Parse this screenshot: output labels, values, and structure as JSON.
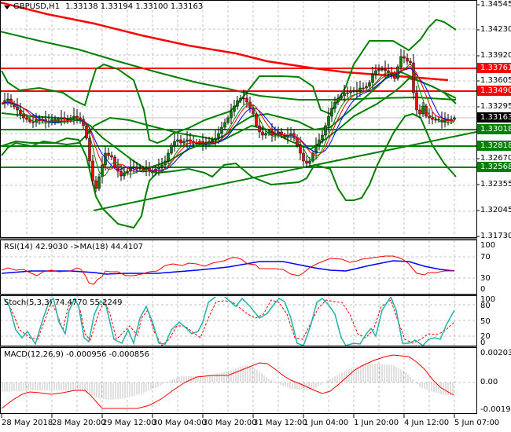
{
  "header": {
    "symbol_label": "GBPUSD,H1",
    "ohlc": "1.33138 1.33194 1.33100 1.33163",
    "dropdown_icon": "triangle-down-icon"
  },
  "price_axis": {
    "ticks": [
      "1.34545",
      "1.34230",
      "1.33920",
      "1.33605",
      "1.33295",
      "1.32980",
      "1.32670",
      "1.32355",
      "1.32045",
      "1.31730"
    ],
    "current_price": "1.33163",
    "levels": [
      {
        "value": "1.33761",
        "color": "#ff0000"
      },
      {
        "value": "1.33490",
        "color": "#ff0000"
      },
      {
        "value": "1.33018",
        "color": "#008000"
      },
      {
        "value": "1.32818",
        "color": "#008000"
      },
      {
        "value": "1.32568",
        "color": "#008000"
      }
    ]
  },
  "rsi": {
    "title": "RSI(14) 42.9030  ->MA(18) 44.4107",
    "ticks": [
      "100",
      "70",
      "30",
      "0"
    ]
  },
  "stoch": {
    "title": "Stoch(5,3,3) 74.4770 55.2249",
    "ticks": [
      "100",
      "80",
      "50",
      "20",
      "0"
    ]
  },
  "macd": {
    "title": "MACD(12,26,9) -0.000956 -0.000856",
    "ticks": [
      "0.002035",
      "0.00",
      "-0.001982"
    ]
  },
  "time_axis": {
    "labels": [
      "28 May 2018",
      "28 May 20:00",
      "29 May 12:00",
      "30 May 04:00",
      "30 May 20:00",
      "31 May 12:00",
      "1 Jun 04:00",
      "1 Jun 20:00",
      "4 Jun 12:00",
      "5 Jun 07:00"
    ]
  },
  "colors": {
    "bull_candle": "#008000",
    "bear_candle": "#ff0000",
    "level_red": "#ff0000",
    "level_green": "#008000",
    "rsi_line": "#ff0000",
    "rsi_ma": "#0000ff",
    "stoch_main": "#20b2aa",
    "stoch_signal": "#ff0000",
    "macd_hist": "#c0c0c0",
    "macd_signal": "#ff0000"
  },
  "chart_data": [
    {
      "type": "candlestick",
      "title": "GBPUSD,H1 1.33138 1.33194 1.33100 1.33163",
      "xlabel": "",
      "ylabel": "",
      "ylim": [
        1.3173,
        1.34545
      ],
      "x_ticks": [
        "28 May 2018",
        "28 May 20:00",
        "29 May 12:00",
        "30 May 04:00",
        "30 May 20:00",
        "31 May 12:00",
        "1 Jun 04:00",
        "1 Jun 20:00",
        "4 Jun 12:00",
        "5 Jun 07:00"
      ],
      "last_ohlc": {
        "open": 1.33138,
        "high": 1.33194,
        "low": 1.331,
        "close": 1.33163
      },
      "horizontal_levels": [
        {
          "value": 1.33761,
          "color": "red",
          "role": "resistance"
        },
        {
          "value": 1.3349,
          "color": "red",
          "role": "resistance"
        },
        {
          "value": 1.33018,
          "color": "green",
          "role": "support"
        },
        {
          "value": 1.32818,
          "color": "green",
          "role": "support"
        },
        {
          "value": 1.32568,
          "color": "green",
          "role": "support"
        }
      ],
      "trendline": {
        "from": {
          "x": "28 May 20:00",
          "y": 1.3205
        },
        "to": {
          "x": "5 Jun 07:00",
          "y": 1.33
        }
      },
      "approx_close_path": [
        {
          "x": "28 May 2018",
          "y": 1.334
        },
        {
          "x": "28 May 20:00",
          "y": 1.33
        },
        {
          "x": "29 May 02:00",
          "y": 1.3235
        },
        {
          "x": "29 May 12:00",
          "y": 1.325
        },
        {
          "x": "30 May 04:00",
          "y": 1.3265
        },
        {
          "x": "30 May 20:00",
          "y": 1.329
        },
        {
          "x": "31 May 02:00",
          "y": 1.3335
        },
        {
          "x": "31 May 12:00",
          "y": 1.3285
        },
        {
          "x": "1 Jun 00:00",
          "y": 1.3262
        },
        {
          "x": "1 Jun 04:00",
          "y": 1.329
        },
        {
          "x": "1 Jun 12:00",
          "y": 1.3345
        },
        {
          "x": "1 Jun 20:00",
          "y": 1.3375
        },
        {
          "x": "4 Jun 08:00",
          "y": 1.339
        },
        {
          "x": "4 Jun 12:00",
          "y": 1.332
        },
        {
          "x": "5 Jun 07:00",
          "y": 1.33163
        }
      ]
    },
    {
      "type": "line",
      "title": "RSI(14) 42.9030 ->MA(18) 44.4107",
      "ylim": [
        0,
        100
      ],
      "y_ticks": [
        0,
        30,
        70,
        100
      ],
      "series": [
        {
          "name": "RSI(14)",
          "last": 42.903,
          "color": "red"
        },
        {
          "name": "MA(18)",
          "last": 44.4107,
          "color": "blue"
        }
      ]
    },
    {
      "type": "line",
      "title": "Stoch(5,3,3) 74.4770 55.2249",
      "ylim": [
        0,
        100
      ],
      "y_ticks": [
        0,
        20,
        50,
        80,
        100
      ],
      "series": [
        {
          "name": "%K",
          "last": 74.477,
          "color": "lightseagreen"
        },
        {
          "name": "%D",
          "last": 55.2249,
          "color": "red",
          "style": "dashed"
        }
      ]
    },
    {
      "type": "bar",
      "title": "MACD(12,26,9) -0.000956 -0.000856",
      "ylim": [
        -0.001982,
        0.002035
      ],
      "y_ticks": [
        -0.001982,
        0.0,
        0.002035
      ],
      "series": [
        {
          "name": "MACD",
          "last": -0.000956,
          "color": "silver",
          "kind": "histogram"
        },
        {
          "name": "Signal",
          "last": -0.000856,
          "color": "red",
          "kind": "line"
        }
      ]
    }
  ]
}
